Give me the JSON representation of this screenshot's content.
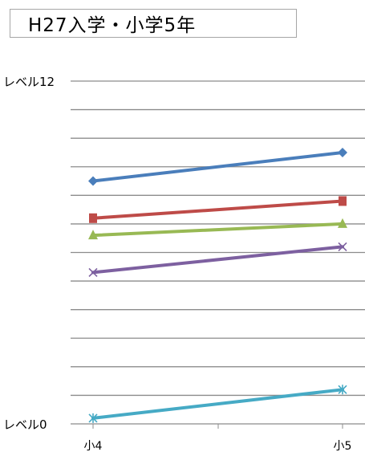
{
  "chart_data": {
    "type": "line",
    "title": "H27入学・小学5年",
    "categories": [
      "小4",
      "小5"
    ],
    "y_tick_labels": [
      {
        "value": 12,
        "label": "レベル12"
      },
      {
        "value": 0,
        "label": "レベル0"
      }
    ],
    "ylim": [
      0,
      12
    ],
    "y_gridline_step": 1,
    "grid": true,
    "legend": "none",
    "series": [
      {
        "values": [
          8.5,
          9.5
        ],
        "color": "#4a7ebb",
        "marker": "diamond"
      },
      {
        "values": [
          7.2,
          7.8
        ],
        "color": "#be4b48",
        "marker": "square"
      },
      {
        "values": [
          6.6,
          7.0
        ],
        "color": "#98b954",
        "marker": "triangle"
      },
      {
        "values": [
          5.3,
          6.2
        ],
        "color": "#7d60a0",
        "marker": "x"
      },
      {
        "values": [
          0.2,
          1.2
        ],
        "color": "#46aac5",
        "marker": "star"
      }
    ]
  }
}
